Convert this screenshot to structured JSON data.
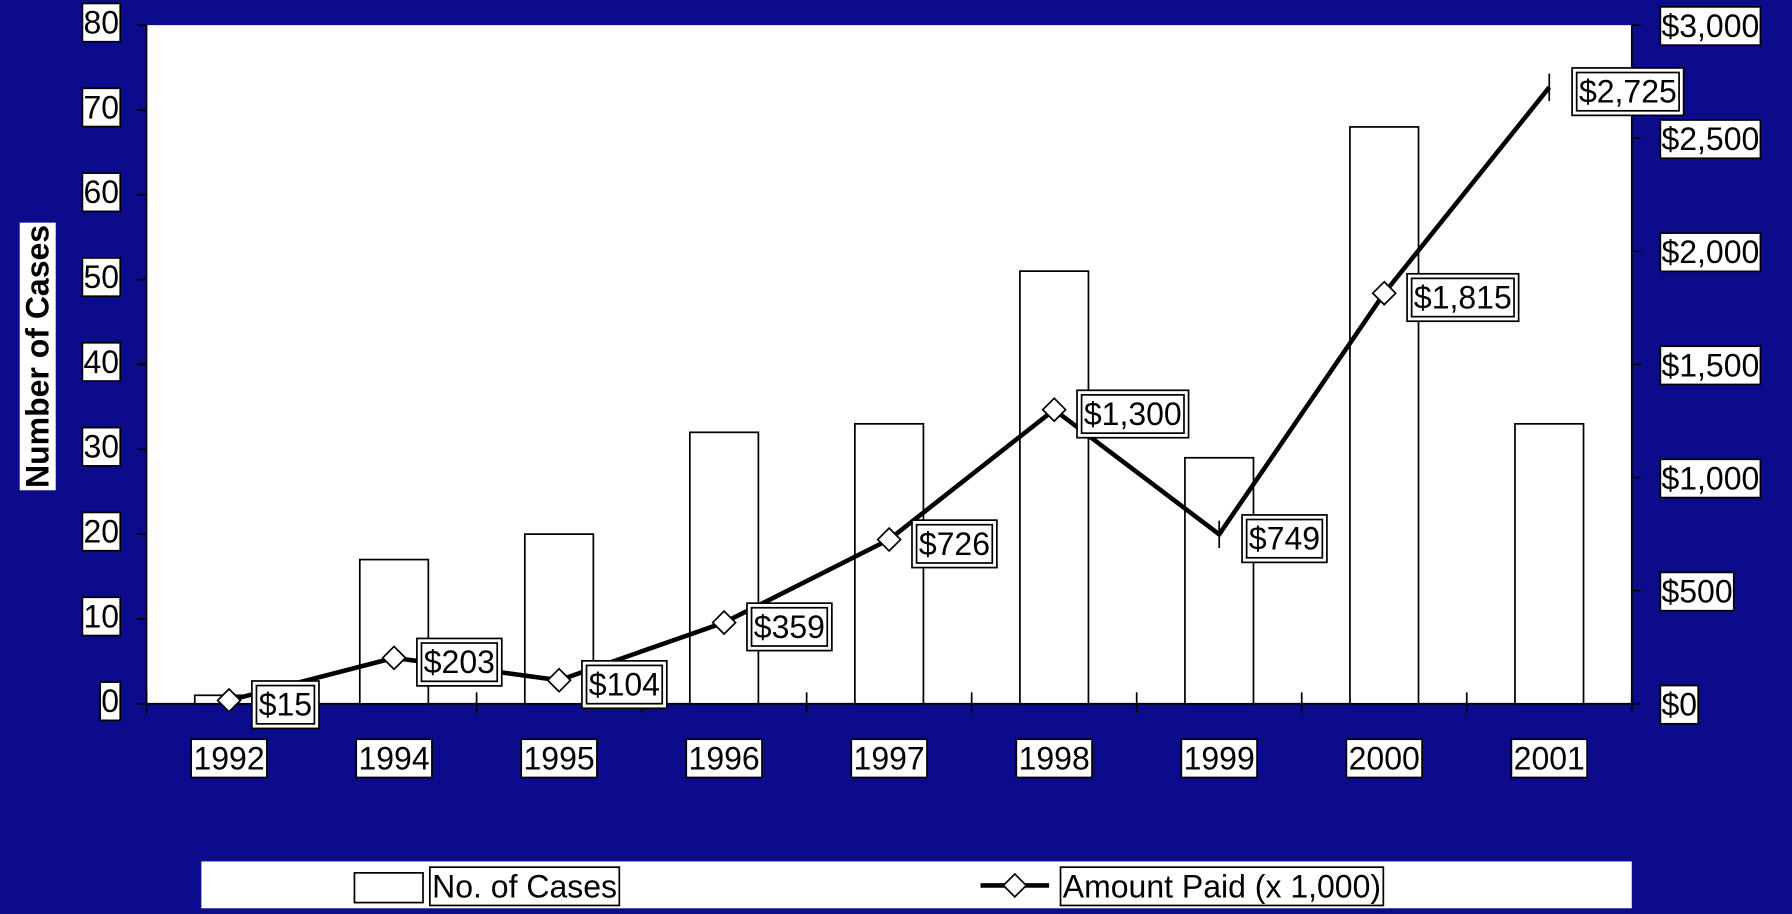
{
  "chart_data": {
    "type": "bar",
    "y_label": "Number of Cases",
    "categories": [
      "1992",
      "1994",
      "1995",
      "1996",
      "1997",
      "1998",
      "1999",
      "2000",
      "2001"
    ],
    "series": [
      {
        "name": "No. of Cases",
        "type": "bar",
        "color": "#ffffff",
        "values": [
          1,
          17,
          20,
          32,
          33,
          51,
          29,
          68,
          33
        ]
      },
      {
        "name": "Amount Paid (x 1,000)",
        "type": "line",
        "axis": "y2",
        "color": "#000000",
        "values": [
          15,
          203,
          104,
          359,
          726,
          1300,
          749,
          1815,
          2725
        ],
        "value_labels": [
          "$15",
          "$203",
          "$104",
          "$359",
          "$726",
          "$1,300",
          "$749",
          "$1,815",
          "$2,725"
        ]
      }
    ],
    "ylim": [
      0,
      80
    ],
    "yticks": [
      0,
      10,
      20,
      30,
      40,
      50,
      60,
      70,
      80
    ],
    "y2lim": [
      0,
      3000
    ],
    "y2ticks": [
      {
        "value": 0,
        "label": "$0"
      },
      {
        "value": 500,
        "label": "$500"
      },
      {
        "value": 1000,
        "label": "$1,000"
      },
      {
        "value": 1500,
        "label": "$1,500"
      },
      {
        "value": 2000,
        "label": "$2,000"
      },
      {
        "value": 2500,
        "label": "$2,500"
      },
      {
        "value": 3000,
        "label": "$3,000"
      }
    ],
    "legend": "bottom"
  }
}
